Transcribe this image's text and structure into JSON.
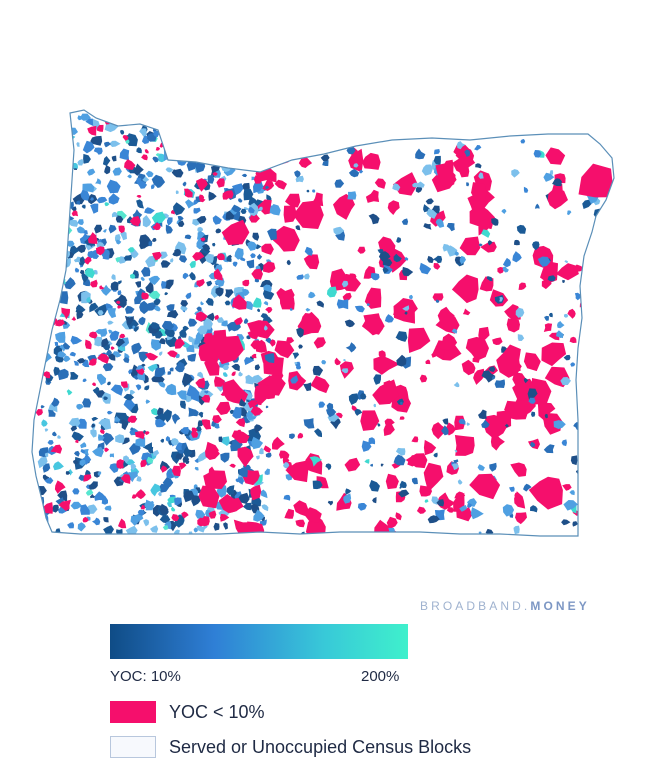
{
  "brand": {
    "left": "BROADBAND",
    "dot": ".",
    "right": "MONEY"
  },
  "colors": {
    "yoc_low": "#f50f6c",
    "gradient_start": "#0f4c86",
    "gradient_mid": "#2f7fd6",
    "gradient_end": "#3ff0cc",
    "served": "#f7f9fd",
    "outline": "#5b8fb8"
  },
  "scale": {
    "min_label": "YOC: 10%",
    "max_label": "200%"
  },
  "legend": {
    "low_label": "YOC < 10%",
    "served_label": "Served or Unoccupied Census Blocks"
  }
}
